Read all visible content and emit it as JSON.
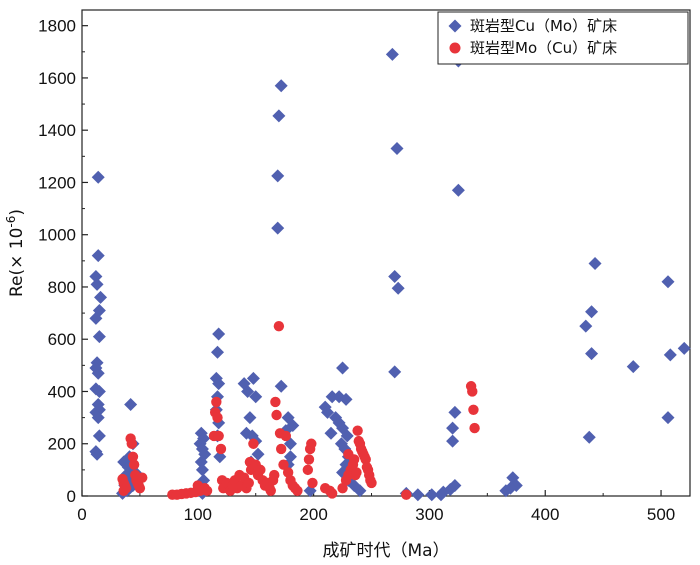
{
  "chart_data": {
    "type": "scatter",
    "xlabel": "成矿时代（Ma）",
    "ylabel_parts": {
      "base": "Re(× 10",
      "sup": "-6",
      "close": ")"
    },
    "xlim": [
      0,
      525
    ],
    "ylim": [
      0,
      1860
    ],
    "xticks": [
      0,
      100,
      200,
      300,
      400,
      500
    ],
    "yticks": [
      0,
      200,
      400,
      600,
      800,
      1000,
      1200,
      1400,
      1600,
      1800
    ],
    "legend_position": "top-right",
    "series": [
      {
        "name": "斑岩型Cu（Mo）矿床",
        "marker": "diamond",
        "color": "#5060b0",
        "points": [
          [
            14,
            1220
          ],
          [
            14,
            920
          ],
          [
            12,
            840
          ],
          [
            13,
            810
          ],
          [
            16,
            760
          ],
          [
            15,
            710
          ],
          [
            12,
            680
          ],
          [
            15,
            610
          ],
          [
            13,
            510
          ],
          [
            12,
            490
          ],
          [
            14,
            470
          ],
          [
            12,
            410
          ],
          [
            15,
            400
          ],
          [
            14,
            350
          ],
          [
            15,
            330
          ],
          [
            12,
            320
          ],
          [
            14,
            300
          ],
          [
            15,
            230
          ],
          [
            12,
            170
          ],
          [
            13,
            160
          ],
          [
            36,
            130
          ],
          [
            40,
            110
          ],
          [
            38,
            80
          ],
          [
            42,
            60
          ],
          [
            37,
            40
          ],
          [
            39,
            20
          ],
          [
            35,
            10
          ],
          [
            42,
            350
          ],
          [
            44,
            200
          ],
          [
            41,
            150
          ],
          [
            46,
            90
          ],
          [
            48,
            60
          ],
          [
            44,
            40
          ],
          [
            103,
            240
          ],
          [
            105,
            220
          ],
          [
            102,
            200
          ],
          [
            104,
            180
          ],
          [
            106,
            160
          ],
          [
            103,
            130
          ],
          [
            104,
            100
          ],
          [
            105,
            60
          ],
          [
            106,
            30
          ],
          [
            104,
            10
          ],
          [
            118,
            620
          ],
          [
            117,
            550
          ],
          [
            116,
            450
          ],
          [
            118,
            430
          ],
          [
            117,
            380
          ],
          [
            116,
            330
          ],
          [
            118,
            280
          ],
          [
            117,
            230
          ],
          [
            119,
            150
          ],
          [
            140,
            430
          ],
          [
            148,
            450
          ],
          [
            143,
            400
          ],
          [
            150,
            380
          ],
          [
            145,
            300
          ],
          [
            142,
            240
          ],
          [
            147,
            230
          ],
          [
            150,
            210
          ],
          [
            152,
            160
          ],
          [
            146,
            130
          ],
          [
            172,
            1570
          ],
          [
            170,
            1455
          ],
          [
            169,
            1225
          ],
          [
            169,
            1025
          ],
          [
            172,
            420
          ],
          [
            178,
            300
          ],
          [
            182,
            270
          ],
          [
            176,
            250
          ],
          [
            180,
            200
          ],
          [
            180,
            150
          ],
          [
            178,
            120
          ],
          [
            197,
            20
          ],
          [
            210,
            340
          ],
          [
            212,
            320
          ],
          [
            216,
            380
          ],
          [
            219,
            300
          ],
          [
            215,
            240
          ],
          [
            225,
            490
          ],
          [
            222,
            380
          ],
          [
            228,
            370
          ],
          [
            222,
            280
          ],
          [
            225,
            260
          ],
          [
            229,
            230
          ],
          [
            224,
            200
          ],
          [
            227,
            180
          ],
          [
            230,
            150
          ],
          [
            228,
            120
          ],
          [
            225,
            90
          ],
          [
            230,
            60
          ],
          [
            235,
            40
          ],
          [
            240,
            20
          ],
          [
            268,
            1690
          ],
          [
            272,
            1330
          ],
          [
            270,
            840
          ],
          [
            273,
            795
          ],
          [
            270,
            475
          ],
          [
            280,
            10
          ],
          [
            290,
            5
          ],
          [
            302,
            5
          ],
          [
            310,
            5
          ],
          [
            325,
            1665
          ],
          [
            325,
            1170
          ],
          [
            322,
            320
          ],
          [
            320,
            260
          ],
          [
            320,
            210
          ],
          [
            322,
            40
          ],
          [
            318,
            25
          ],
          [
            312,
            15
          ],
          [
            366,
            20
          ],
          [
            372,
            70
          ],
          [
            375,
            40
          ],
          [
            370,
            30
          ],
          [
            443,
            890
          ],
          [
            440,
            705
          ],
          [
            435,
            650
          ],
          [
            440,
            545
          ],
          [
            438,
            225
          ],
          [
            476,
            495
          ],
          [
            506,
            820
          ],
          [
            508,
            540
          ],
          [
            506,
            300
          ],
          [
            520,
            565
          ]
        ]
      },
      {
        "name": "斑岩型Mo（Cu）矿床",
        "marker": "circle",
        "color": "#e8343a",
        "points": [
          [
            35,
            65
          ],
          [
            36,
            50
          ],
          [
            37,
            40
          ],
          [
            38,
            30
          ],
          [
            36,
            20
          ],
          [
            42,
            220
          ],
          [
            43,
            200
          ],
          [
            44,
            150
          ],
          [
            45,
            120
          ],
          [
            46,
            80
          ],
          [
            47,
            60
          ],
          [
            48,
            50
          ],
          [
            49,
            40
          ],
          [
            50,
            30
          ],
          [
            52,
            70
          ],
          [
            78,
            5
          ],
          [
            82,
            5
          ],
          [
            86,
            8
          ],
          [
            90,
            10
          ],
          [
            94,
            12
          ],
          [
            98,
            15
          ],
          [
            100,
            40
          ],
          [
            102,
            20
          ],
          [
            106,
            30
          ],
          [
            108,
            20
          ],
          [
            114,
            230
          ],
          [
            115,
            320
          ],
          [
            116,
            360
          ],
          [
            117,
            300
          ],
          [
            118,
            230
          ],
          [
            120,
            180
          ],
          [
            121,
            60
          ],
          [
            122,
            30
          ],
          [
            125,
            50
          ],
          [
            128,
            20
          ],
          [
            130,
            40
          ],
          [
            132,
            60
          ],
          [
            134,
            30
          ],
          [
            136,
            80
          ],
          [
            138,
            40
          ],
          [
            140,
            70
          ],
          [
            142,
            30
          ],
          [
            144,
            50
          ],
          [
            145,
            130
          ],
          [
            146,
            100
          ],
          [
            148,
            200
          ],
          [
            150,
            120
          ],
          [
            152,
            80
          ],
          [
            154,
            100
          ],
          [
            156,
            60
          ],
          [
            158,
            40
          ],
          [
            160,
            50
          ],
          [
            162,
            30
          ],
          [
            163,
            20
          ],
          [
            165,
            60
          ],
          [
            166,
            80
          ],
          [
            167,
            360
          ],
          [
            168,
            310
          ],
          [
            170,
            650
          ],
          [
            171,
            240
          ],
          [
            172,
            180
          ],
          [
            174,
            120
          ],
          [
            176,
            230
          ],
          [
            178,
            90
          ],
          [
            180,
            60
          ],
          [
            182,
            40
          ],
          [
            184,
            30
          ],
          [
            186,
            20
          ],
          [
            195,
            100
          ],
          [
            196,
            140
          ],
          [
            197,
            180
          ],
          [
            198,
            200
          ],
          [
            199,
            50
          ],
          [
            210,
            30
          ],
          [
            214,
            20
          ],
          [
            216,
            10
          ],
          [
            225,
            30
          ],
          [
            228,
            60
          ],
          [
            230,
            80
          ],
          [
            232,
            100
          ],
          [
            234,
            120
          ],
          [
            236,
            80
          ],
          [
            237,
            90
          ],
          [
            238,
            250
          ],
          [
            239,
            210
          ],
          [
            240,
            200
          ],
          [
            241,
            180
          ],
          [
            242,
            170
          ],
          [
            243,
            160
          ],
          [
            244,
            150
          ],
          [
            245,
            140
          ],
          [
            246,
            110
          ],
          [
            247,
            100
          ],
          [
            248,
            80
          ],
          [
            249,
            60
          ],
          [
            250,
            50
          ],
          [
            230,
            160
          ],
          [
            235,
            140
          ],
          [
            280,
            5
          ],
          [
            336,
            420
          ],
          [
            337,
            400
          ],
          [
            338,
            330
          ],
          [
            339,
            260
          ]
        ]
      }
    ]
  }
}
